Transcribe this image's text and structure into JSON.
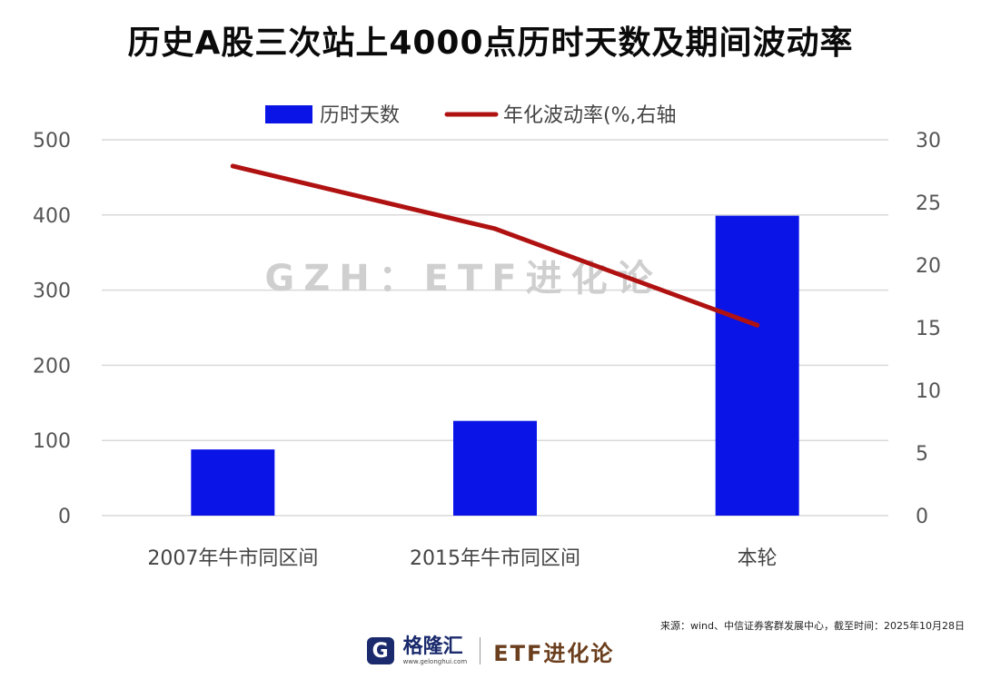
{
  "title": "历史A股三次站上4000点历时天数及期间波动率",
  "watermark": "GZH：ETF进化论",
  "source_note": "来源：wind、中信证券客群发展中心，截至时间：2025年10月28日",
  "footer": {
    "logo_glyph": "G",
    "logo_text": "格隆汇",
    "logo_url": "www.gelonghui.com",
    "brand": "ETF进化论"
  },
  "colors": {
    "bar": "#0a14e6",
    "line": "#b01212",
    "grid": "#d9d9d9",
    "tick": "#555555"
  },
  "chart_data": {
    "type": "bar",
    "categories": [
      "2007年牛市同区间",
      "2015年牛市同区间",
      "本轮"
    ],
    "series": [
      {
        "name": "历时天数",
        "type": "bar",
        "axis": "left",
        "values": [
          88,
          126,
          399
        ]
      },
      {
        "name": "年化波动率(%,右轴",
        "type": "line",
        "axis": "right",
        "values": [
          27.9,
          22.9,
          15.2
        ]
      }
    ],
    "y_left": {
      "min": 0,
      "max": 500,
      "ticks": [
        0,
        100,
        200,
        300,
        400,
        500
      ]
    },
    "y_right": {
      "min": 0,
      "max": 30,
      "ticks": [
        0,
        5,
        10,
        15,
        20,
        25,
        30
      ]
    },
    "grid": true,
    "legend": "top-center"
  }
}
